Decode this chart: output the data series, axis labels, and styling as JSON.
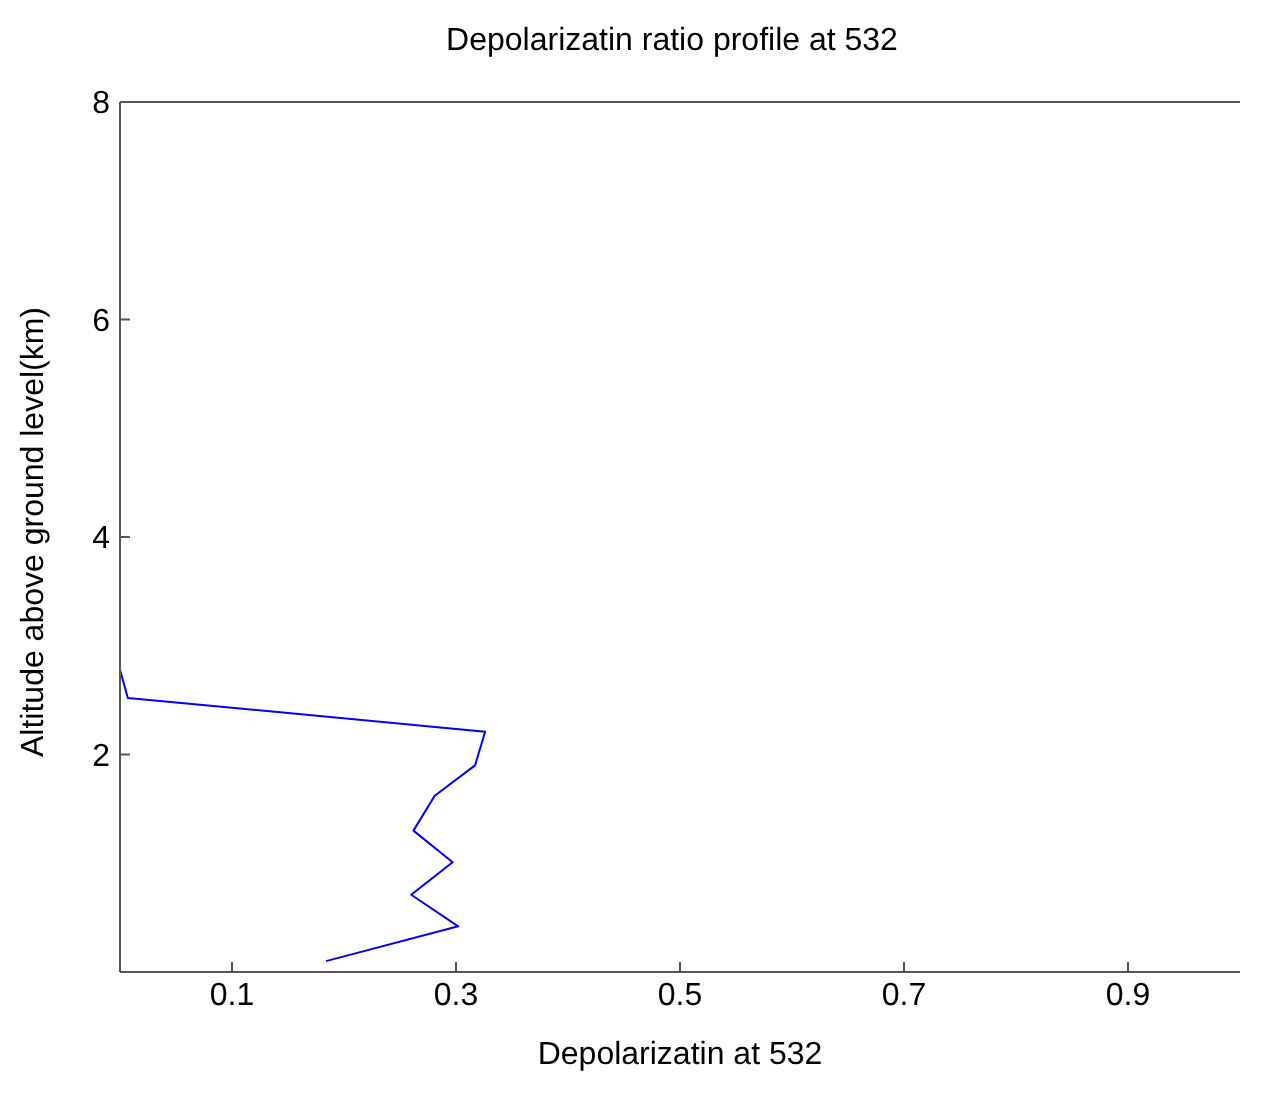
{
  "chart_data": {
    "type": "line",
    "title": "Depolarizatin ratio profile at 532",
    "xlabel": "Depolarizatin at 532",
    "ylabel": "Altitude above ground level(km)",
    "x": [
      0.184,
      0.302,
      0.26,
      0.297,
      0.262,
      0.281,
      0.317,
      0.326,
      0.007,
      0
    ],
    "series": [
      {
        "color": "#0000ff",
        "values": [
          0.1,
          0.42,
          0.71,
          1.01,
          1.3,
          1.62,
          1.9,
          2.21,
          2.52,
          2.78
        ]
      }
    ],
    "xlim": [
      0,
      1
    ],
    "xticks": [
      0.1,
      0.3,
      0.5,
      0.7,
      0.9
    ],
    "ylim": [
      0,
      8
    ],
    "yticks": [
      2,
      4,
      6,
      8
    ],
    "grid": false,
    "legend": false,
    "marker": "none",
    "line_style": "solid"
  }
}
